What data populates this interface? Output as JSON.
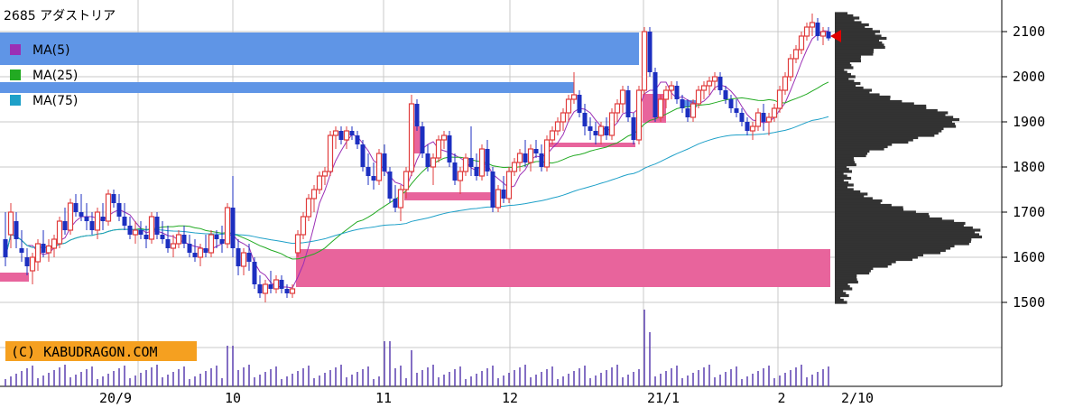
{
  "chart_data": {
    "type": "candlestick",
    "title": "2685 アダストリア",
    "legend": [
      {
        "label": "MA(5)",
        "color": "#9b2fb5"
      },
      {
        "label": "MA(25)",
        "color": "#22aa22"
      },
      {
        "label": "MA(75)",
        "color": "#1ea0c8"
      }
    ],
    "copyright": "(C) KABUDRAGON.COM",
    "y_ticks": [
      1500,
      1600,
      1700,
      1800,
      1900,
      2000,
      2100
    ],
    "ylim": [
      1440,
      2160
    ],
    "x_tick_labels": [
      "20/9",
      "10",
      "11",
      "12",
      "21/1",
      "2",
      "2/10"
    ],
    "up_color": "#e03c3c",
    "down_color": "#1c2fc0",
    "vol_color": "#5a3fb0",
    "gap_band_color": "#e8649c",
    "resistance_band_color": "#5f95e6",
    "profile_color": "#333333",
    "marker_color": "#e00000",
    "approx_range": {
      "low": 1500,
      "high": 2140,
      "last": 2085
    },
    "ma_end_values": {
      "ma5": 2100,
      "ma25": 1975,
      "ma75": 1895
    }
  }
}
